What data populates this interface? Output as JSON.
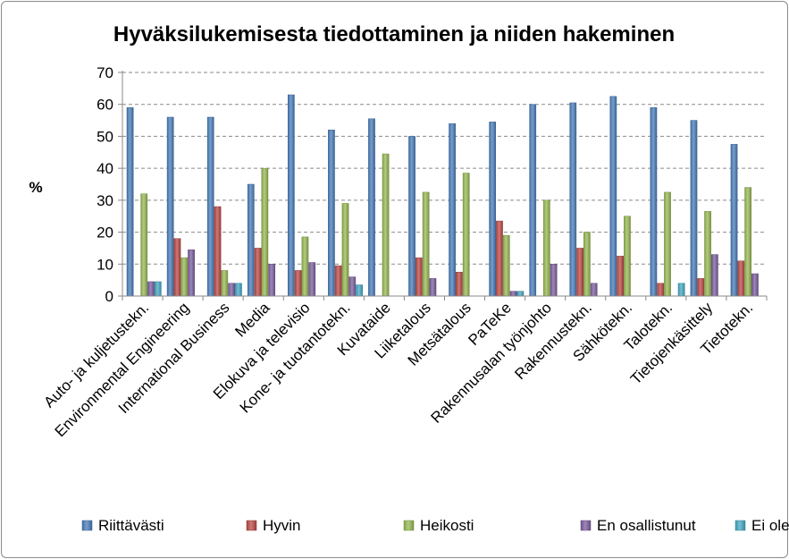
{
  "chart_data": {
    "type": "bar",
    "title": "Hyväksilukemisesta tiedottaminen ja niiden hakeminen",
    "xlabel": "",
    "ylabel": "%",
    "ylim": [
      0,
      70
    ],
    "yticks": [
      0,
      10,
      20,
      30,
      40,
      50,
      60,
      70
    ],
    "grid": true,
    "legend_position": "bottom",
    "categories": [
      "Auto- ja kuljetustekn.",
      "Environmental Engineering",
      "International Business",
      "Media",
      "Elokuva ja televisio",
      "Kone- ja tuotantotekn.",
      "Kuvataide",
      "Liiketalous",
      "Metsätalous",
      "PaTeKe",
      "Rakennusalan työnjohto",
      "Rakennustekn.",
      "Sähkötekn.",
      "Talotekn.",
      "Tietojenkäsittely",
      "Tietotekn."
    ],
    "series": [
      {
        "name": "Riittävästi",
        "color": "#4a7ebb",
        "values": [
          59,
          56,
          56,
          35,
          63,
          52,
          55.5,
          50,
          54,
          54.5,
          60,
          60.5,
          62.5,
          59,
          55,
          47.5
        ]
      },
      {
        "name": "Hyvin",
        "color": "#be4b48",
        "values": [
          0,
          18,
          28,
          15,
          8,
          9.5,
          0,
          12,
          7.5,
          23.5,
          0,
          15,
          12.5,
          4,
          5.5,
          11
        ]
      },
      {
        "name": "Heikosti",
        "color": "#98b954",
        "values": [
          32,
          12,
          8,
          40,
          18.5,
          29,
          44.5,
          32.5,
          38.5,
          19,
          30,
          20,
          25,
          32.5,
          26.5,
          34
        ]
      },
      {
        "name": "En osallistunut",
        "color": "#7d60a0",
        "values": [
          4.5,
          14.5,
          4,
          10,
          10.5,
          6,
          0,
          5.5,
          0,
          1.5,
          10,
          4,
          0,
          0,
          13,
          7
        ]
      },
      {
        "name": "Ei ole järjestetty",
        "color": "#46aac5",
        "values": [
          4.5,
          0,
          4,
          0,
          0,
          3.5,
          0,
          0,
          0,
          1.5,
          0,
          0,
          0,
          4,
          0,
          0
        ]
      }
    ]
  }
}
